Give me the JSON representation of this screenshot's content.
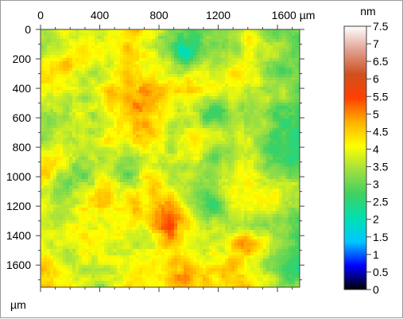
{
  "chart_data": {
    "type": "heatmap",
    "title": "",
    "x_unit": "µm",
    "y_unit": "µm",
    "xlim": [
      0,
      1750
    ],
    "ylim": [
      0,
      1750
    ],
    "x_ticks": [
      "0",
      "400",
      "800",
      "1200",
      "1600"
    ],
    "x_tick_values": [
      0,
      400,
      800,
      1200,
      1600
    ],
    "y_ticks": [
      "0",
      "200",
      "400",
      "600",
      "800",
      "1000",
      "1200",
      "1400",
      "1600"
    ],
    "y_tick_values": [
      0,
      200,
      400,
      600,
      800,
      1000,
      1200,
      1400,
      1600
    ],
    "colorbar": {
      "unit": "nm",
      "range": [
        0,
        7.5
      ],
      "ticks": [
        "0",
        "0.5",
        "1",
        "1.5",
        "2",
        "2.5",
        "3",
        "3.5",
        "4",
        "4.5",
        "5",
        "5.5",
        "6",
        "6.5",
        "7",
        "7.5"
      ],
      "tick_values": [
        0,
        0.5,
        1,
        1.5,
        2,
        2.5,
        3,
        3.5,
        4,
        4.5,
        5,
        5.5,
        6,
        6.5,
        7,
        7.5
      ],
      "colormap": [
        "#000000",
        "#0000ff",
        "#00c8ff",
        "#00e0b0",
        "#40d060",
        "#a0e040",
        "#ffff00",
        "#ffb000",
        "#ff4000",
        "#d05020",
        "#e0a090",
        "#ffffff"
      ]
    },
    "grid": false,
    "notes": "surface height map, values roughly 1–6.5 nm, mostly 3–4.5 nm"
  }
}
